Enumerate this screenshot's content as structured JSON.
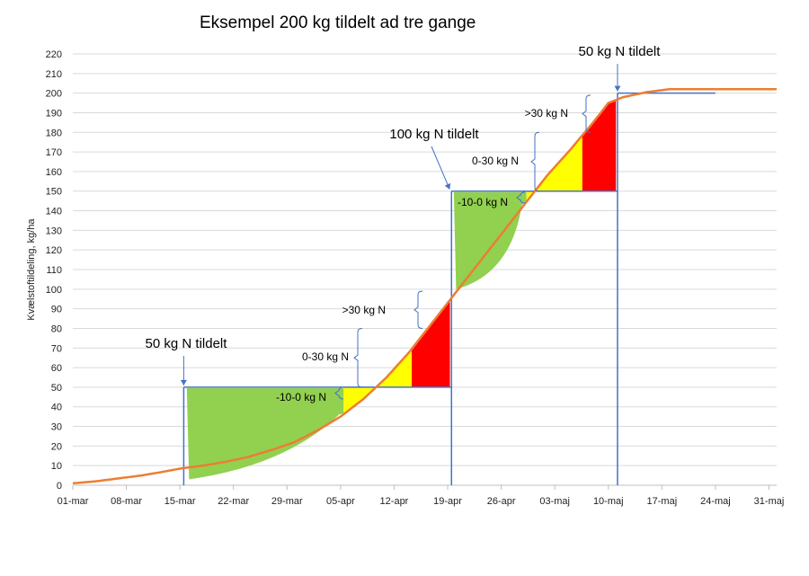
{
  "chart_data": {
    "type": "line",
    "title": "Eksempel 200 kg tildelt ad tre gange",
    "ylabel": "Kvælstoftildeling, kg/ha",
    "xlabel": "",
    "ylim": [
      0,
      220
    ],
    "yticks": [
      0,
      10,
      20,
      30,
      40,
      50,
      60,
      70,
      80,
      90,
      100,
      110,
      120,
      130,
      140,
      150,
      160,
      170,
      180,
      190,
      200,
      210,
      220
    ],
    "xlim": [
      0,
      92
    ],
    "x_ticks": [
      {
        "day": 0,
        "label": "01-mar"
      },
      {
        "day": 7,
        "label": "08-mar"
      },
      {
        "day": 14,
        "label": "15-mar"
      },
      {
        "day": 21,
        "label": "22-mar"
      },
      {
        "day": 28,
        "label": "29-mar"
      },
      {
        "day": 35,
        "label": "05-apr"
      },
      {
        "day": 42,
        "label": "12-apr"
      },
      {
        "day": 49,
        "label": "19-apr"
      },
      {
        "day": 56,
        "label": "26-apr"
      },
      {
        "day": 63,
        "label": "03-maj"
      },
      {
        "day": 70,
        "label": "10-maj"
      },
      {
        "day": 77,
        "label": "17-maj"
      },
      {
        "day": 84,
        "label": "24-maj"
      },
      {
        "day": 91,
        "label": "31-maj"
      }
    ],
    "grid": "horizontal",
    "colors": {
      "curve": "#ed7d31",
      "steps": "#4472c4",
      "green": "#92d050",
      "yellow": "#ffff00",
      "red": "#ff0000",
      "grid": "#d9d9d9",
      "axis": "#bfbfbf"
    },
    "series": [
      {
        "x": [
          0,
          3,
          6,
          9,
          12,
          14,
          17,
          20,
          23,
          26,
          29,
          32,
          35,
          38,
          41,
          44,
          47,
          50,
          53,
          56,
          59,
          62,
          65,
          68,
          70,
          72,
          75,
          78,
          80,
          85,
          90,
          92
        ],
        "y": [
          1,
          2,
          3.5,
          5,
          7,
          8.5,
          10,
          12,
          14.5,
          18,
          22,
          28,
          35,
          44,
          55,
          68,
          83,
          98,
          113,
          128,
          143,
          158,
          171,
          185,
          195,
          198,
          200.5,
          202,
          202,
          202,
          202,
          202
        ]
      }
    ],
    "applications": [
      {
        "day": 14.5,
        "kg": 50,
        "level_from": 0,
        "level_to": 50,
        "label": "50 kg N tildelt"
      },
      {
        "day": 49.5,
        "kg": 100,
        "level_from": 50,
        "level_to": 150,
        "label": "100 kg N tildelt"
      },
      {
        "day": 71.2,
        "kg": 50,
        "level_from": 150,
        "level_to": 200,
        "label": "50 kg N tildelt"
      }
    ],
    "zone_labels": {
      "minus10_0": "-10-0 kg N",
      "zero_30": "0-30 kg N",
      "over30": ">30 kg N"
    }
  }
}
